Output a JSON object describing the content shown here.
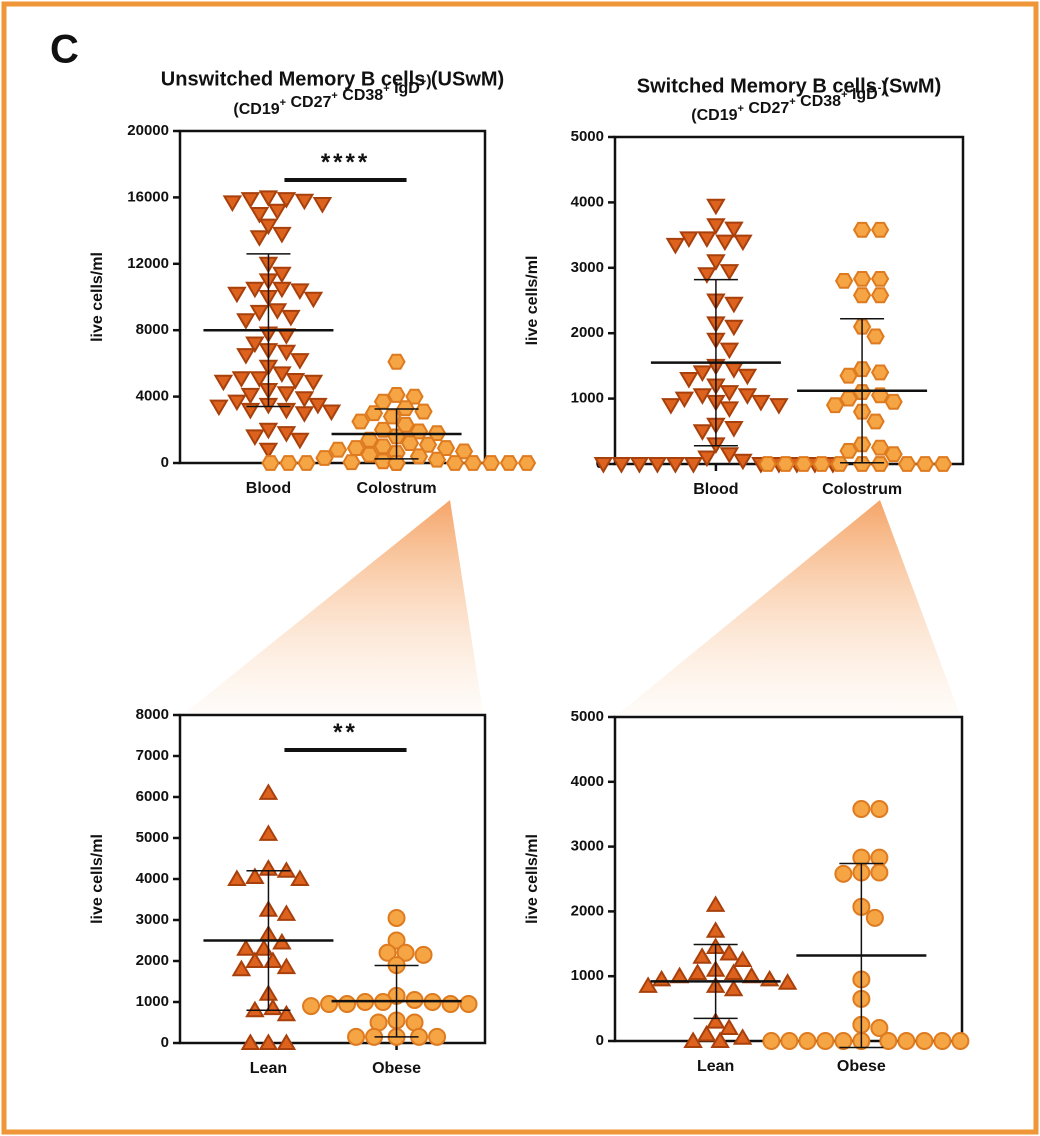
{
  "panel_label": "C",
  "chart_data": [
    {
      "type": "dot",
      "title": "Unswitched Memory B cells (USwM)",
      "subtitle": [
        {
          "text": "(CD19",
          "sup": "+"
        },
        {
          "text": " CD27",
          "sup": "+"
        },
        {
          "text": " CD38",
          "sup": "+"
        },
        {
          "text": " IgD",
          "sup": "+"
        },
        {
          "text": ")"
        }
      ],
      "ylabel": "live cells/ml",
      "ylim": [
        0,
        20000
      ],
      "yticks": [
        0,
        4000,
        8000,
        12000,
        16000,
        20000
      ],
      "significance": "****",
      "groups": [
        {
          "category": "Blood",
          "marker": "triangle-down",
          "color": "#dd621e",
          "edge": "#a8400c",
          "mean": 8000,
          "sd": 4600,
          "values": [
            16000,
            15900,
            15900,
            15800,
            15700,
            15600,
            15200,
            15000,
            14300,
            13800,
            13600,
            12000,
            11400,
            11000,
            10500,
            10500,
            10400,
            10200,
            10000,
            9900,
            9200,
            9100,
            8800,
            8600,
            7800,
            7700,
            7200,
            6800,
            6700,
            6500,
            6200,
            5800,
            5400,
            5100,
            5100,
            5000,
            4900,
            4900,
            4400,
            4200,
            4100,
            3900,
            3700,
            3500,
            3500,
            3400,
            3200,
            3200,
            3100,
            3000,
            2000,
            1800,
            1600,
            1400,
            800
          ]
        },
        {
          "category": "Colostrum",
          "marker": "hexagon",
          "color": "#f5a544",
          "edge": "#de7a1f",
          "mean": 1750,
          "sd": 1500,
          "values": [
            6100,
            4100,
            4000,
            3700,
            3300,
            3100,
            3000,
            2800,
            2500,
            2300,
            2000,
            1900,
            1800,
            1600,
            1400,
            1200,
            1100,
            1000,
            900,
            900,
            800,
            700,
            600,
            500,
            400,
            300,
            200,
            100,
            50,
            0,
            0,
            0,
            0,
            0,
            0,
            0,
            0,
            0,
            0,
            0
          ]
        }
      ]
    },
    {
      "type": "dot",
      "title": "Switched Memory B cells (SwM)",
      "subtitle": [
        {
          "text": "(CD19",
          "sup": "+"
        },
        {
          "text": " CD27",
          "sup": "+"
        },
        {
          "text": " CD38",
          "sup": "+"
        },
        {
          "text": " IgD",
          "sup": "-"
        },
        {
          "text": ")"
        }
      ],
      "ylabel": "live cells/ml",
      "ylim": [
        0,
        5000
      ],
      "yticks": [
        0,
        1000,
        2000,
        3000,
        4000,
        5000
      ],
      "groups": [
        {
          "category": "Blood",
          "marker": "triangle-down",
          "color": "#dd621e",
          "edge": "#a8400c",
          "mean": 1550,
          "sd": 1270,
          "values": [
            3950,
            3650,
            3600,
            3450,
            3450,
            3400,
            3400,
            3350,
            3100,
            2950,
            2900,
            2500,
            2450,
            2150,
            2100,
            1900,
            1750,
            1500,
            1450,
            1400,
            1350,
            1300,
            1200,
            1100,
            1050,
            1050,
            1000,
            950,
            950,
            900,
            900,
            850,
            600,
            550,
            500,
            300,
            150,
            100,
            50,
            0,
            0,
            0,
            0,
            0,
            0,
            0,
            0,
            0,
            0,
            0
          ]
        },
        {
          "category": "Colostrum",
          "marker": "hexagon",
          "color": "#f5a544",
          "edge": "#de7a1f",
          "mean": 1120,
          "sd": 1100,
          "values": [
            3580,
            3580,
            2830,
            2830,
            2800,
            2580,
            2580,
            2100,
            1950,
            1450,
            1400,
            1350,
            1100,
            1050,
            1000,
            950,
            900,
            800,
            650,
            300,
            250,
            200,
            150,
            0,
            0,
            0,
            0,
            0,
            0,
            0,
            0,
            0,
            0
          ]
        }
      ]
    },
    {
      "type": "dot",
      "ylabel": "live cells/ml",
      "ylim": [
        0,
        8000
      ],
      "yticks": [
        0,
        1000,
        2000,
        3000,
        4000,
        5000,
        6000,
        7000,
        8000
      ],
      "significance": "**",
      "groups": [
        {
          "category": "Lean",
          "marker": "triangle-up",
          "color": "#dd621e",
          "edge": "#a8400c",
          "mean": 2500,
          "sd": 1700,
          "values": [
            6100,
            5100,
            4250,
            4200,
            4050,
            4000,
            4000,
            3250,
            3150,
            2650,
            2450,
            2300,
            2300,
            2000,
            2000,
            1850,
            1800,
            1200,
            850,
            800,
            700,
            0,
            0,
            0
          ]
        },
        {
          "category": "Obese",
          "marker": "circle",
          "color": "#f5a544",
          "edge": "#de7a1f",
          "mean": 1020,
          "sd": 870,
          "values": [
            3050,
            2500,
            2200,
            2200,
            2150,
            1900,
            1150,
            1050,
            1000,
            1000,
            1000,
            950,
            950,
            950,
            950,
            900,
            550,
            500,
            500,
            150,
            150,
            150,
            150,
            150
          ]
        }
      ]
    },
    {
      "type": "dot",
      "ylabel": "live cells/ml",
      "ylim": [
        0,
        5000
      ],
      "yticks": [
        0,
        1000,
        2000,
        3000,
        4000,
        5000
      ],
      "groups": [
        {
          "category": "Lean",
          "marker": "triangle-up",
          "color": "#dd621e",
          "edge": "#a8400c",
          "mean": 920,
          "sd": 570,
          "values": [
            2100,
            1700,
            1450,
            1350,
            1300,
            1250,
            1100,
            1050,
            1050,
            1000,
            1000,
            950,
            950,
            900,
            850,
            850,
            800,
            300,
            200,
            100,
            50,
            0,
            0
          ]
        },
        {
          "category": "Obese",
          "marker": "circle",
          "color": "#f5a544",
          "edge": "#de7a1f",
          "mean": 1320,
          "sd": 1420,
          "values": [
            3580,
            3580,
            2830,
            2830,
            2600,
            2600,
            2580,
            2070,
            1900,
            950,
            650,
            250,
            200,
            0,
            0,
            0,
            0,
            0,
            0,
            0,
            0,
            0,
            0,
            0
          ]
        }
      ]
    }
  ]
}
